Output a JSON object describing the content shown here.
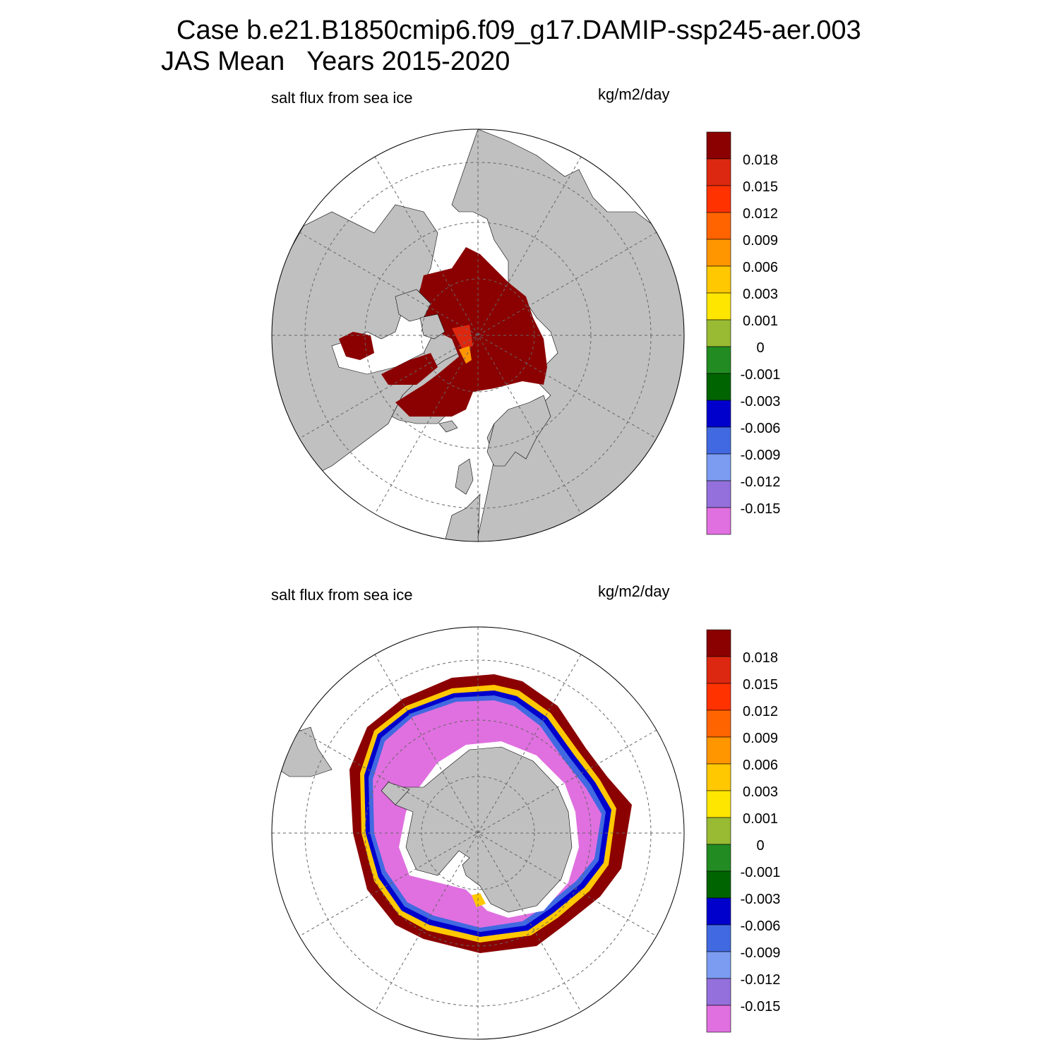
{
  "figure": {
    "title_line1": "Case b.e21.B1850cmip6.f09_g17.DAMIP-ssp245-aer.003",
    "title_line2": "JAS Mean   Years 2015-2020"
  },
  "panels": [
    {
      "hemisphere": "north",
      "variable_label": "salt flux from sea ice",
      "units_label": "kg/m2/day"
    },
    {
      "hemisphere": "south",
      "variable_label": "salt flux from sea ice",
      "units_label": "kg/m2/day"
    }
  ],
  "colorbar": {
    "colors": [
      "#8b0000",
      "#dc2810",
      "#ff3200",
      "#ff6400",
      "#ff9600",
      "#ffc800",
      "#ffe600",
      "#99bb33",
      "#228b22",
      "#006400",
      "#0000cd",
      "#4169e1",
      "#7b9cf0",
      "#9370db",
      "#e070e0"
    ],
    "tick_labels": [
      "0.018",
      "0.015",
      "0.012",
      "0.009",
      "0.006",
      "0.003",
      "0.001",
      "0",
      "-0.001",
      "-0.003",
      "-0.006",
      "-0.009",
      "-0.012",
      "-0.015"
    ]
  },
  "map_colors": {
    "land": "#c0c0c0",
    "ocean_no_ice": "#ffffff",
    "grid": "#666666"
  }
}
